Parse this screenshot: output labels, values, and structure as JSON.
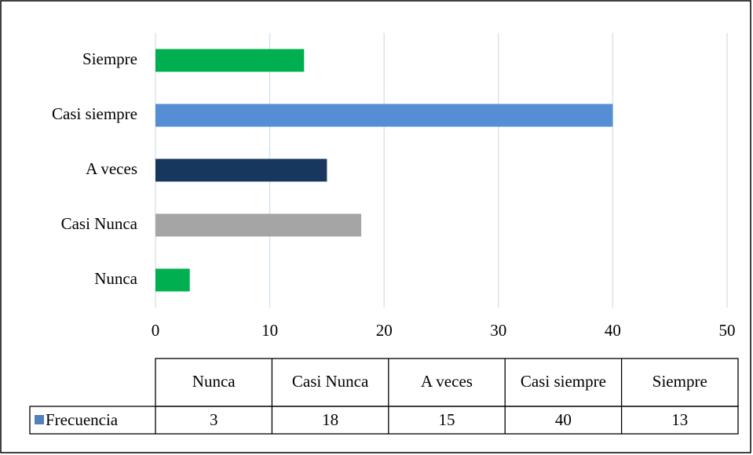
{
  "chart_data": {
    "type": "bar",
    "orientation": "horizontal",
    "categories": [
      "Nunca",
      "Casi Nunca",
      "A veces",
      "Casi siempre",
      "Siempre"
    ],
    "series": [
      {
        "name": "Frecuencia",
        "color": "#4f81bd",
        "values": [
          3,
          18,
          15,
          40,
          13
        ],
        "colors": [
          "#00b050",
          "#a5a5a5",
          "#17375e",
          "#558ed5",
          "#00b050"
        ]
      }
    ],
    "xlim": [
      0,
      50
    ],
    "xticks": [
      0,
      10,
      20,
      30,
      40,
      50
    ],
    "grid": true,
    "data_table": true
  }
}
